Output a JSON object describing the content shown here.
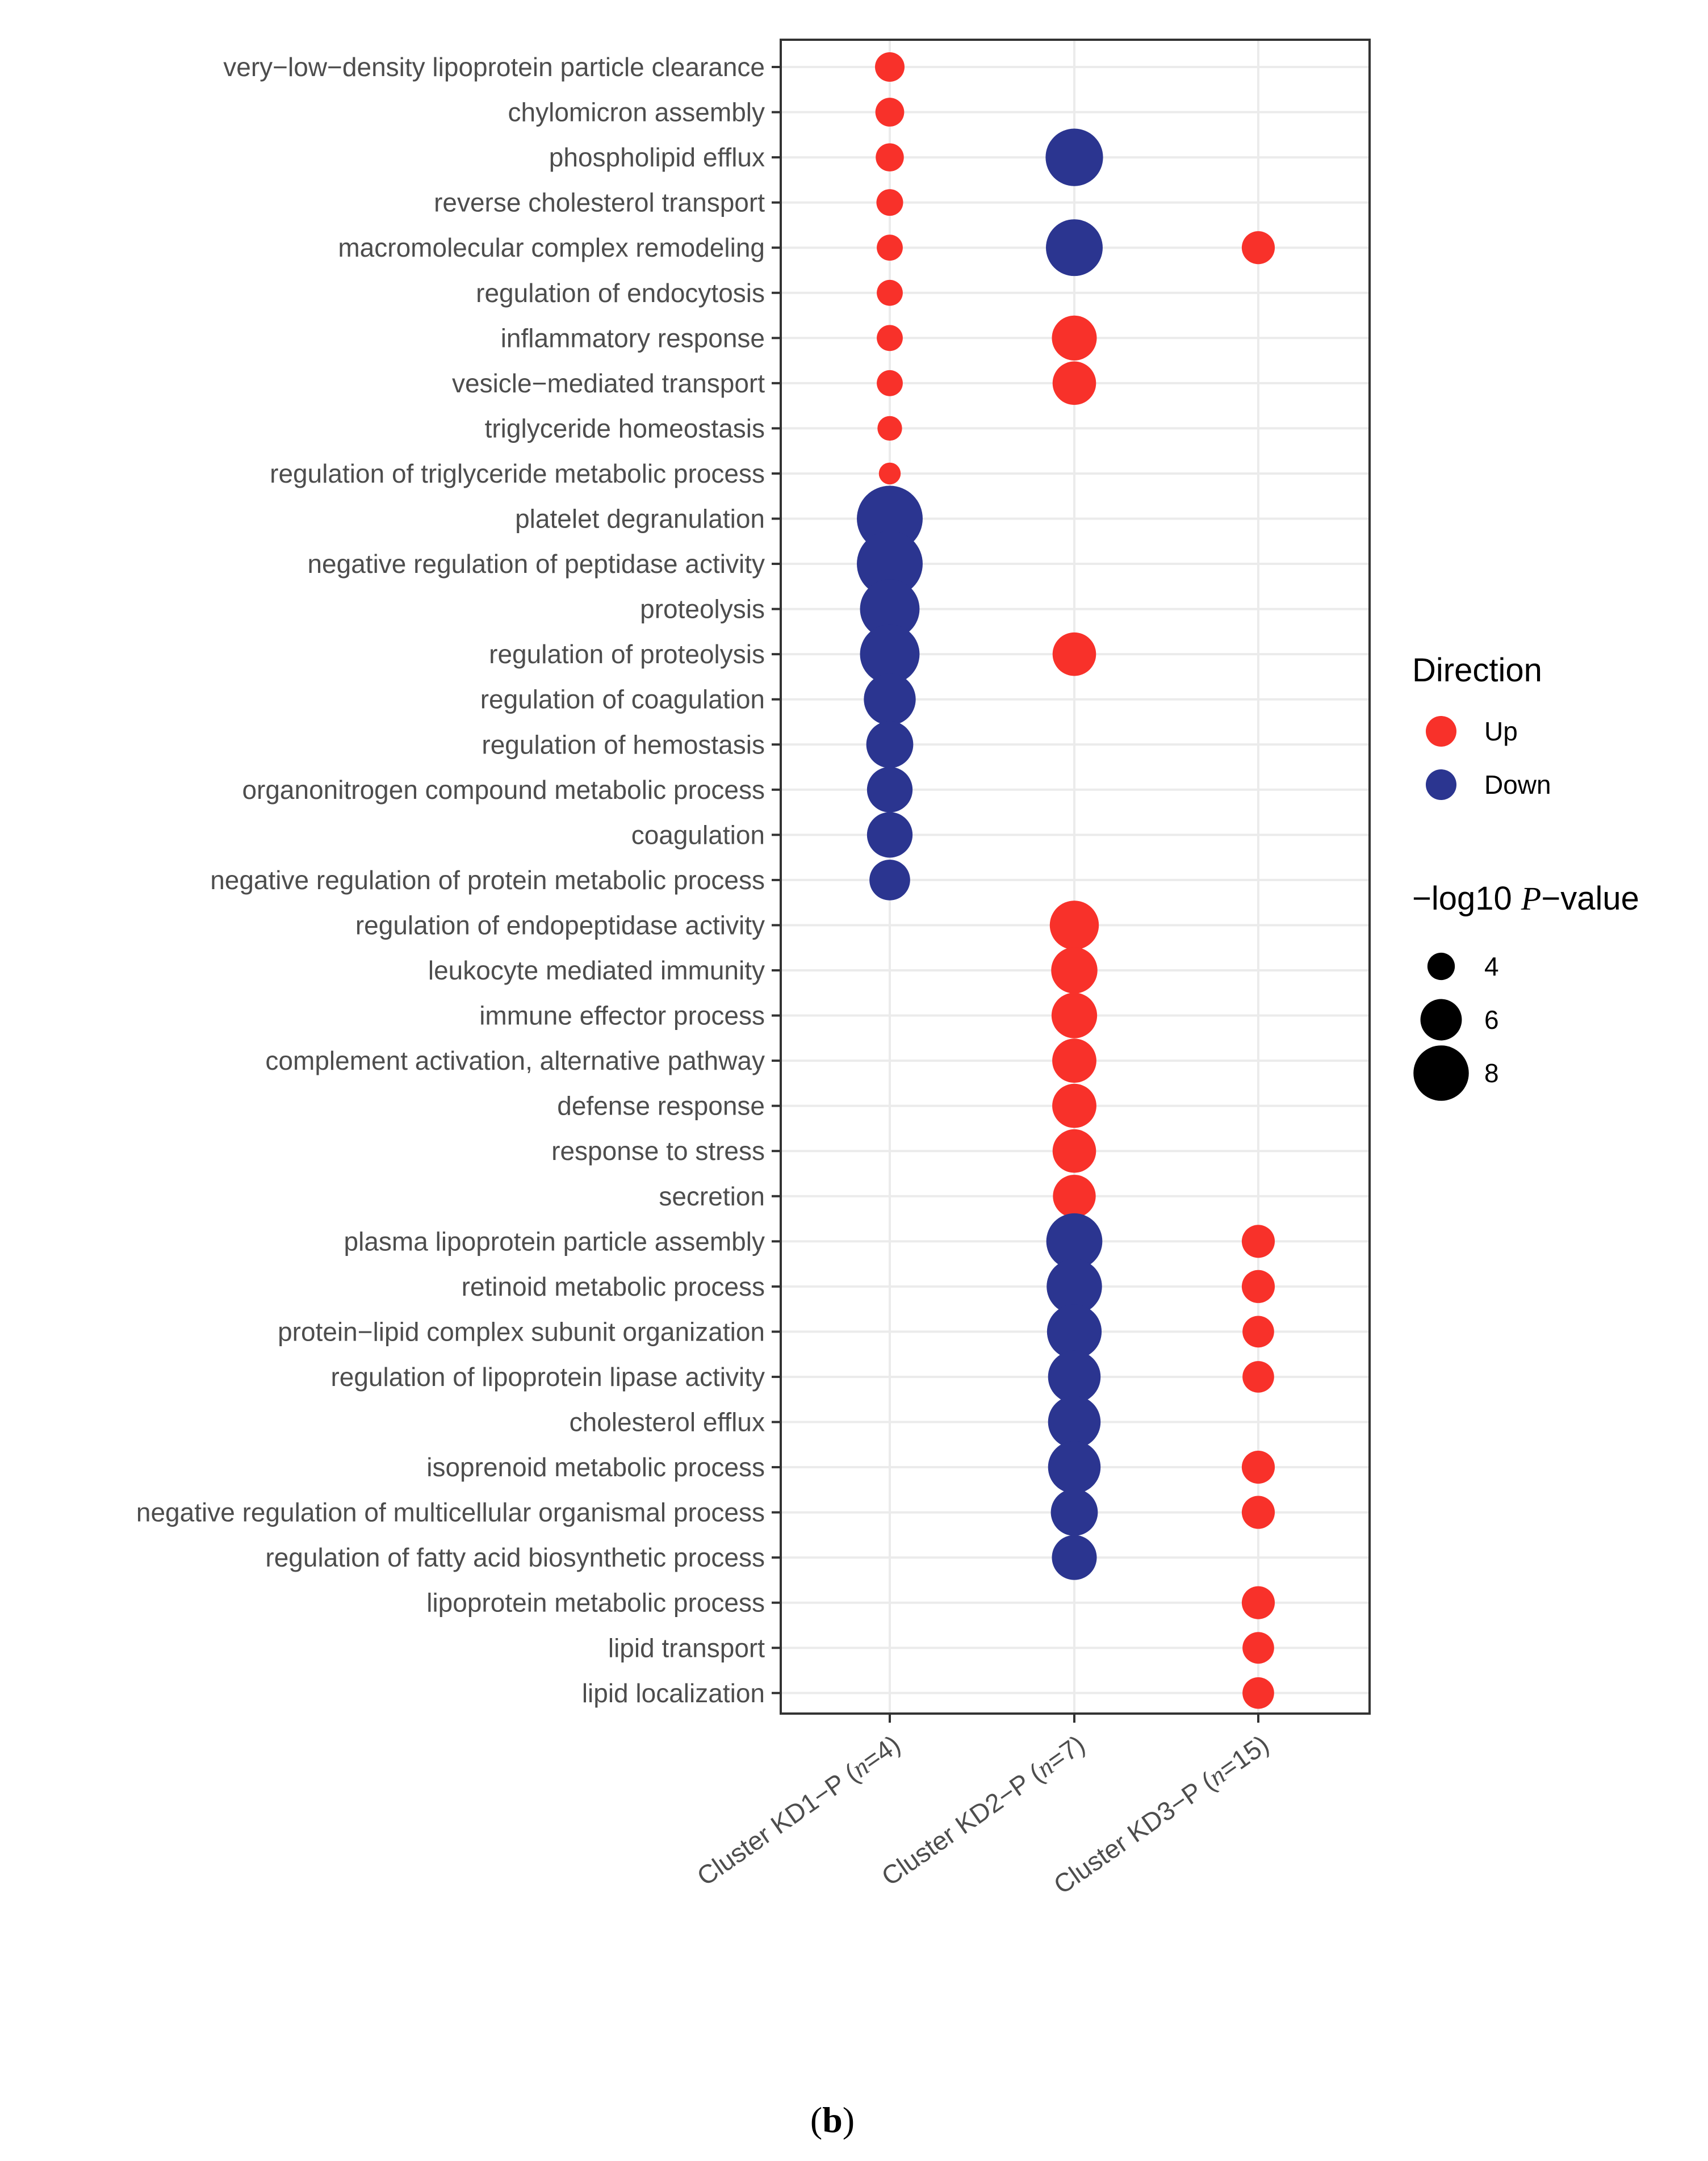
{
  "chart_data": {
    "type": "scatter",
    "subtype": "dot-plot",
    "categories_x": [
      {
        "prefix": "Cluster KD1−P (",
        "n_symbol": "n",
        "n_value": "=4)"
      },
      {
        "prefix": "Cluster KD2−P (",
        "n_symbol": "n",
        "n_value": "=7)"
      },
      {
        "prefix": "Cluster KD3−P (",
        "n_symbol": "n",
        "n_value": "=15)"
      }
    ],
    "categories_y": [
      "very−low−density lipoprotein particle clearance",
      "chylomicron assembly",
      "phospholipid efflux",
      "reverse cholesterol transport",
      "macromolecular complex remodeling",
      "regulation of endocytosis",
      "inflammatory response",
      "vesicle−mediated transport",
      "triglyceride homeostasis",
      "regulation of triglyceride metabolic process",
      "platelet degranulation",
      "negative regulation of peptidase activity",
      "proteolysis",
      "regulation of proteolysis",
      "regulation of coagulation",
      "regulation of hemostasis",
      "organonitrogen compound metabolic process",
      "coagulation",
      "negative regulation of protein metabolic process",
      "regulation of endopeptidase activity",
      "leukocyte mediated immunity",
      "immune effector process",
      "complement activation, alternative pathway",
      "defense response",
      "response to stress",
      "secretion",
      "plasma lipoprotein particle assembly",
      "retinoid metabolic process",
      "protein−lipid complex subunit organization",
      "regulation of lipoprotein lipase activity",
      "cholesterol efflux",
      "isoprenoid metabolic process",
      "negative regulation of multicellular organismal process",
      "regulation of fatty acid biosynthetic process",
      "lipoprotein metabolic process",
      "lipid transport",
      "lipid localization"
    ],
    "points": [
      {
        "term": 0,
        "cluster": 0,
        "direction": "Up",
        "neglog10p": 4.3
      },
      {
        "term": 1,
        "cluster": 0,
        "direction": "Up",
        "neglog10p": 4.2
      },
      {
        "term": 2,
        "cluster": 0,
        "direction": "Up",
        "neglog10p": 4.1
      },
      {
        "term": 3,
        "cluster": 0,
        "direction": "Up",
        "neglog10p": 3.9
      },
      {
        "term": 4,
        "cluster": 0,
        "direction": "Up",
        "neglog10p": 3.8
      },
      {
        "term": 5,
        "cluster": 0,
        "direction": "Up",
        "neglog10p": 3.8
      },
      {
        "term": 6,
        "cluster": 0,
        "direction": "Up",
        "neglog10p": 3.8
      },
      {
        "term": 7,
        "cluster": 0,
        "direction": "Up",
        "neglog10p": 3.8
      },
      {
        "term": 8,
        "cluster": 0,
        "direction": "Up",
        "neglog10p": 3.6
      },
      {
        "term": 9,
        "cluster": 0,
        "direction": "Up",
        "neglog10p": 3.2
      },
      {
        "term": 10,
        "cluster": 0,
        "direction": "Down",
        "neglog10p": 9.5
      },
      {
        "term": 11,
        "cluster": 0,
        "direction": "Down",
        "neglog10p": 9.5
      },
      {
        "term": 12,
        "cluster": 0,
        "direction": "Down",
        "neglog10p": 8.6
      },
      {
        "term": 13,
        "cluster": 0,
        "direction": "Down",
        "neglog10p": 8.6
      },
      {
        "term": 14,
        "cluster": 0,
        "direction": "Down",
        "neglog10p": 7.5
      },
      {
        "term": 15,
        "cluster": 0,
        "direction": "Down",
        "neglog10p": 6.8
      },
      {
        "term": 16,
        "cluster": 0,
        "direction": "Down",
        "neglog10p": 6.6
      },
      {
        "term": 17,
        "cluster": 0,
        "direction": "Down",
        "neglog10p": 6.6
      },
      {
        "term": 18,
        "cluster": 0,
        "direction": "Down",
        "neglog10p": 5.9
      },
      {
        "term": 2,
        "cluster": 1,
        "direction": "Down",
        "neglog10p": 8.3
      },
      {
        "term": 4,
        "cluster": 1,
        "direction": "Down",
        "neglog10p": 8.2
      },
      {
        "term": 6,
        "cluster": 1,
        "direction": "Up",
        "neglog10p": 6.5
      },
      {
        "term": 7,
        "cluster": 1,
        "direction": "Up",
        "neglog10p": 6.3
      },
      {
        "term": 13,
        "cluster": 1,
        "direction": "Up",
        "neglog10p": 6.3
      },
      {
        "term": 19,
        "cluster": 1,
        "direction": "Up",
        "neglog10p": 7.1
      },
      {
        "term": 20,
        "cluster": 1,
        "direction": "Up",
        "neglog10p": 6.7
      },
      {
        "term": 21,
        "cluster": 1,
        "direction": "Up",
        "neglog10p": 6.6
      },
      {
        "term": 22,
        "cluster": 1,
        "direction": "Up",
        "neglog10p": 6.4
      },
      {
        "term": 23,
        "cluster": 1,
        "direction": "Up",
        "neglog10p": 6.4
      },
      {
        "term": 24,
        "cluster": 1,
        "direction": "Up",
        "neglog10p": 6.3
      },
      {
        "term": 25,
        "cluster": 1,
        "direction": "Up",
        "neglog10p": 6.2
      },
      {
        "term": 26,
        "cluster": 1,
        "direction": "Down",
        "neglog10p": 8.1
      },
      {
        "term": 27,
        "cluster": 1,
        "direction": "Down",
        "neglog10p": 8.0
      },
      {
        "term": 28,
        "cluster": 1,
        "direction": "Down",
        "neglog10p": 7.9
      },
      {
        "term": 29,
        "cluster": 1,
        "direction": "Down",
        "neglog10p": 7.6
      },
      {
        "term": 30,
        "cluster": 1,
        "direction": "Down",
        "neglog10p": 7.6
      },
      {
        "term": 31,
        "cluster": 1,
        "direction": "Down",
        "neglog10p": 7.6
      },
      {
        "term": 32,
        "cluster": 1,
        "direction": "Down",
        "neglog10p": 6.8
      },
      {
        "term": 33,
        "cluster": 1,
        "direction": "Down",
        "neglog10p": 6.5
      },
      {
        "term": 4,
        "cluster": 2,
        "direction": "Up",
        "neglog10p": 4.8
      },
      {
        "term": 26,
        "cluster": 2,
        "direction": "Up",
        "neglog10p": 4.8
      },
      {
        "term": 27,
        "cluster": 2,
        "direction": "Up",
        "neglog10p": 4.8
      },
      {
        "term": 28,
        "cluster": 2,
        "direction": "Up",
        "neglog10p": 4.6
      },
      {
        "term": 29,
        "cluster": 2,
        "direction": "Up",
        "neglog10p": 4.6
      },
      {
        "term": 31,
        "cluster": 2,
        "direction": "Up",
        "neglog10p": 4.8
      },
      {
        "term": 32,
        "cluster": 2,
        "direction": "Up",
        "neglog10p": 4.8
      },
      {
        "term": 34,
        "cluster": 2,
        "direction": "Up",
        "neglog10p": 4.8
      },
      {
        "term": 35,
        "cluster": 2,
        "direction": "Up",
        "neglog10p": 4.6
      },
      {
        "term": 36,
        "cluster": 2,
        "direction": "Up",
        "neglog10p": 4.6
      }
    ],
    "legend": {
      "direction_title": "Direction",
      "direction_items": [
        {
          "label": "Up",
          "color": "#f8312a"
        },
        {
          "label": "Down",
          "color": "#2b3590"
        }
      ],
      "size_title_prefix": "−log10 ",
      "size_title_p": "P",
      "size_title_suffix": "−value",
      "size_items": [
        {
          "label": "4",
          "value": 4
        },
        {
          "label": "6",
          "value": 6
        },
        {
          "label": "8",
          "value": 8
        }
      ],
      "placement": "right"
    },
    "grid": true
  },
  "caption": {
    "open": "(",
    "letter": "b",
    "close": ")"
  }
}
